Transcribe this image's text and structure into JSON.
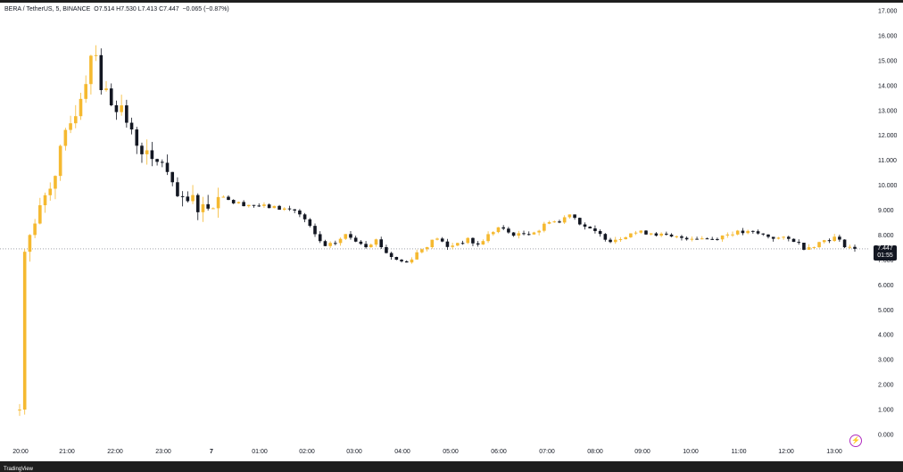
{
  "header": {
    "symbol": "BERA / TetherUS, 5, BINANCE",
    "open": "O7.514",
    "high": "H7.530",
    "low": "L7.413",
    "close": "C7.447",
    "change": "−0.065 (−0.87%)"
  },
  "price_tag": {
    "value": "7.447",
    "countdown": "01:55"
  },
  "brand": "TradingView",
  "colors": {
    "up": "#f5b930",
    "down": "#131722",
    "grid_text": "#131722",
    "tag_bg": "#131722",
    "flash": "#b02cbf"
  },
  "chart_data": {
    "type": "candlestick",
    "symbol": "BERA / TetherUS",
    "interval": "5",
    "exchange": "BINANCE",
    "ylim": [
      0,
      17
    ],
    "y_ticks": [
      "17.000",
      "16.000",
      "15.000",
      "14.000",
      "13.000",
      "12.000",
      "11.000",
      "10.000",
      "9.000",
      "8.000",
      "7.000",
      "6.000",
      "5.000",
      "4.000",
      "3.000",
      "2.000",
      "1.000",
      "0.000"
    ],
    "x_ticks": [
      "20:00",
      "21:00",
      "22:00",
      "23:00",
      "7",
      "01:00",
      "02:00",
      "03:00",
      "04:00",
      "05:00",
      "06:00",
      "07:00",
      "08:00",
      "09:00",
      "10:00",
      "11:00",
      "12:00",
      "13:00"
    ],
    "x_ticks_bold": [
      "7"
    ],
    "last_price": 7.447,
    "candles_start": "20:00",
    "candle_minutes": 5,
    "path_anchors": [
      [
        0,
        1.0
      ],
      [
        1,
        7.6
      ],
      [
        3,
        8.4
      ],
      [
        5,
        9.6
      ],
      [
        7,
        10.6
      ],
      [
        9,
        11.9
      ],
      [
        11,
        13.0
      ],
      [
        13,
        14.3
      ],
      [
        14,
        15.3
      ],
      [
        15,
        15.4
      ],
      [
        16,
        14.0
      ],
      [
        18,
        13.4
      ],
      [
        20,
        13.1
      ],
      [
        22,
        12.0
      ],
      [
        24,
        11.5
      ],
      [
        26,
        10.8
      ],
      [
        28,
        11.0
      ],
      [
        30,
        9.8
      ],
      [
        32,
        9.2
      ],
      [
        34,
        9.4
      ],
      [
        36,
        9.1
      ],
      [
        38,
        9.4
      ],
      [
        40,
        9.6
      ],
      [
        42,
        9.3
      ],
      [
        46,
        9.2
      ],
      [
        50,
        9.1
      ],
      [
        54,
        9.0
      ],
      [
        56,
        8.6
      ],
      [
        58,
        8.0
      ],
      [
        60,
        7.5
      ],
      [
        62,
        7.7
      ],
      [
        64,
        8.0
      ],
      [
        66,
        7.8
      ],
      [
        68,
        7.6
      ],
      [
        70,
        7.8
      ],
      [
        72,
        7.3
      ],
      [
        74,
        7.0
      ],
      [
        76,
        6.9
      ],
      [
        78,
        7.3
      ],
      [
        80,
        7.6
      ],
      [
        82,
        7.9
      ],
      [
        84,
        7.5
      ],
      [
        86,
        7.7
      ],
      [
        88,
        7.8
      ],
      [
        90,
        7.6
      ],
      [
        92,
        8.0
      ],
      [
        94,
        8.3
      ],
      [
        96,
        8.1
      ],
      [
        98,
        8.0
      ],
      [
        102,
        8.2
      ],
      [
        104,
        8.6
      ],
      [
        106,
        8.5
      ],
      [
        108,
        8.9
      ],
      [
        110,
        8.5
      ],
      [
        112,
        8.2
      ],
      [
        114,
        8.0
      ],
      [
        116,
        7.8
      ],
      [
        118,
        7.9
      ],
      [
        120,
        8.1
      ],
      [
        124,
        8.1
      ],
      [
        128,
        7.9
      ],
      [
        132,
        7.9
      ],
      [
        136,
        7.85
      ],
      [
        140,
        8.1
      ],
      [
        144,
        8.1
      ],
      [
        148,
        7.9
      ],
      [
        152,
        7.8
      ],
      [
        154,
        7.5
      ],
      [
        156,
        7.6
      ],
      [
        158,
        7.8
      ],
      [
        160,
        7.9
      ],
      [
        162,
        7.6
      ],
      [
        164,
        7.45
      ]
    ]
  }
}
